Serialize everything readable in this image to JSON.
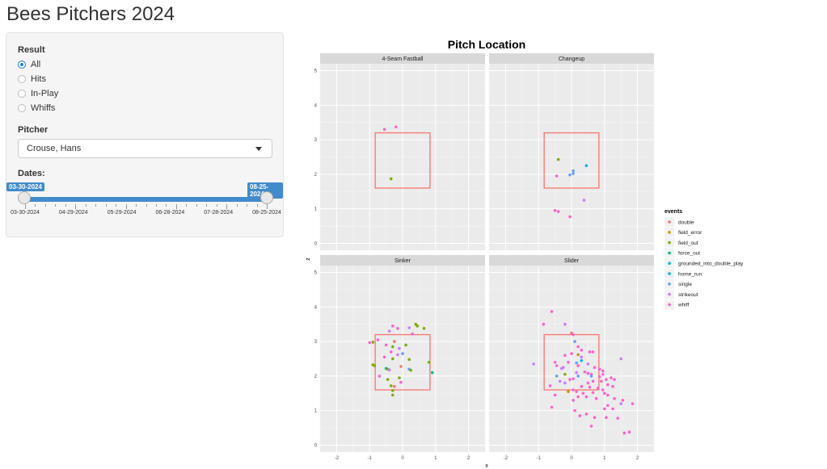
{
  "app": {
    "title": "Bees Pitchers 2024"
  },
  "sidebar": {
    "result_label": "Result",
    "result_options": [
      {
        "label": "All",
        "selected": true
      },
      {
        "label": "Hits",
        "selected": false
      },
      {
        "label": "In-Play",
        "selected": false
      },
      {
        "label": "Whiffs",
        "selected": false
      }
    ],
    "pitcher_label": "Pitcher",
    "pitcher_value": "Crouse, Hans",
    "dates_label": "Dates:",
    "date_start": "03-30-2024",
    "date_end": "08-25-2024",
    "date_ticks": [
      "03-30-2024",
      "04-29-2024",
      "05-29-2024",
      "06-28-2024",
      "07-28-2024",
      "08-25-2024"
    ]
  },
  "chart_data": {
    "type": "scatter",
    "title": "Pitch Location",
    "xlabel": "x",
    "ylabel": "z",
    "xlim": [
      -2.5,
      2.5
    ],
    "ylim": [
      -0.2,
      5.2
    ],
    "x_ticks": [
      -2,
      -1,
      0,
      1,
      2
    ],
    "y_ticks": [
      0,
      1,
      2,
      3,
      4,
      5
    ],
    "grid": true,
    "legend_position": "right",
    "legend_title": "events",
    "strike_zone": {
      "x": [
        -0.83,
        0.83
      ],
      "z": [
        1.6,
        3.2
      ]
    },
    "colors": {
      "double": "#F8766D",
      "field_error": "#C49A00",
      "field_out": "#7CAE00",
      "force_out": "#00C08B",
      "grounded_into_double_play": "#00BFC4",
      "home_run": "#00B4F0",
      "single": "#619CFF",
      "strikeout": "#C77CFF",
      "whiff": "#FF61CC"
    },
    "events": [
      "double",
      "field_error",
      "field_out",
      "force_out",
      "grounded_into_double_play",
      "home_run",
      "single",
      "strikeout",
      "whiff"
    ],
    "panels": [
      {
        "name": "4-Seam Fastball",
        "points": [
          {
            "x": -0.55,
            "z": 3.3,
            "event": "whiff"
          },
          {
            "x": -0.2,
            "z": 3.37,
            "event": "whiff"
          },
          {
            "x": -0.35,
            "z": 1.87,
            "event": "field_out"
          }
        ]
      },
      {
        "name": "Changeup",
        "points": [
          {
            "x": -0.4,
            "z": 2.43,
            "event": "field_out"
          },
          {
            "x": 0.45,
            "z": 2.25,
            "event": "home_run"
          },
          {
            "x": 0.05,
            "z": 2.1,
            "event": "single"
          },
          {
            "x": 0.05,
            "z": 2.02,
            "event": "single"
          },
          {
            "x": -0.05,
            "z": 1.98,
            "event": "single"
          },
          {
            "x": -0.45,
            "z": 1.95,
            "event": "whiff"
          },
          {
            "x": 0.38,
            "z": 1.25,
            "event": "strikeout"
          },
          {
            "x": -0.5,
            "z": 0.95,
            "event": "whiff"
          },
          {
            "x": -0.4,
            "z": 0.92,
            "event": "whiff"
          },
          {
            "x": -0.05,
            "z": 0.77,
            "event": "whiff"
          }
        ]
      },
      {
        "name": "Sinker",
        "points": [
          {
            "x": 0.4,
            "z": 3.5,
            "event": "field_out"
          },
          {
            "x": 0.45,
            "z": 3.45,
            "event": "field_out"
          },
          {
            "x": -0.3,
            "z": 3.45,
            "event": "whiff"
          },
          {
            "x": -0.15,
            "z": 3.38,
            "event": "whiff"
          },
          {
            "x": 0.2,
            "z": 3.4,
            "event": "strikeout"
          },
          {
            "x": 0.65,
            "z": 3.38,
            "event": "field_out"
          },
          {
            "x": -0.4,
            "z": 3.3,
            "event": "strikeout"
          },
          {
            "x": 0.3,
            "z": 3.22,
            "event": "whiff"
          },
          {
            "x": -0.75,
            "z": 3.05,
            "event": "whiff"
          },
          {
            "x": -1.0,
            "z": 2.97,
            "event": "whiff"
          },
          {
            "x": -0.9,
            "z": 2.98,
            "event": "field_out"
          },
          {
            "x": -0.25,
            "z": 3.0,
            "event": "double"
          },
          {
            "x": -0.5,
            "z": 2.9,
            "event": "whiff"
          },
          {
            "x": 0.1,
            "z": 2.9,
            "event": "field_out"
          },
          {
            "x": -0.3,
            "z": 2.85,
            "event": "field_out"
          },
          {
            "x": -0.1,
            "z": 2.8,
            "event": "strikeout"
          },
          {
            "x": -0.35,
            "z": 2.7,
            "event": "whiff"
          },
          {
            "x": 0.0,
            "z": 2.65,
            "event": "single"
          },
          {
            "x": -0.15,
            "z": 2.62,
            "event": "strikeout"
          },
          {
            "x": -0.55,
            "z": 2.55,
            "event": "whiff"
          },
          {
            "x": -0.3,
            "z": 2.5,
            "event": "field_out"
          },
          {
            "x": 0.2,
            "z": 2.48,
            "event": "field_out"
          },
          {
            "x": 0.8,
            "z": 2.4,
            "event": "field_out"
          },
          {
            "x": -0.9,
            "z": 2.33,
            "event": "field_out"
          },
          {
            "x": -0.85,
            "z": 2.3,
            "event": "field_out"
          },
          {
            "x": -0.05,
            "z": 2.28,
            "event": "double"
          },
          {
            "x": -0.5,
            "z": 2.22,
            "event": "force_out"
          },
          {
            "x": -0.45,
            "z": 2.2,
            "event": "field_out"
          },
          {
            "x": -0.4,
            "z": 2.18,
            "event": "strikeout"
          },
          {
            "x": 0.2,
            "z": 2.2,
            "event": "single"
          },
          {
            "x": 0.25,
            "z": 2.17,
            "event": "field_out"
          },
          {
            "x": 0.9,
            "z": 2.1,
            "event": "force_out"
          },
          {
            "x": -0.7,
            "z": 2.0,
            "event": "whiff"
          },
          {
            "x": -0.1,
            "z": 1.95,
            "event": "field_out"
          },
          {
            "x": -0.45,
            "z": 1.9,
            "event": "field_out"
          },
          {
            "x": -0.05,
            "z": 1.82,
            "event": "whiff"
          },
          {
            "x": -0.35,
            "z": 1.72,
            "event": "field_out"
          },
          {
            "x": -0.25,
            "z": 1.7,
            "event": "double"
          },
          {
            "x": -0.3,
            "z": 1.58,
            "event": "field_out"
          },
          {
            "x": -0.3,
            "z": 1.45,
            "event": "field_out"
          }
        ]
      },
      {
        "name": "Slider",
        "points": [
          {
            "x": -0.6,
            "z": 3.87,
            "event": "whiff"
          },
          {
            "x": -0.85,
            "z": 3.5,
            "event": "whiff"
          },
          {
            "x": -0.2,
            "z": 3.5,
            "event": "strikeout"
          },
          {
            "x": 0.0,
            "z": 3.25,
            "event": "double"
          },
          {
            "x": 0.05,
            "z": 3.2,
            "event": "whiff"
          },
          {
            "x": 0.1,
            "z": 3.0,
            "event": "single"
          },
          {
            "x": 0.2,
            "z": 2.85,
            "event": "whiff"
          },
          {
            "x": 0.3,
            "z": 2.75,
            "event": "whiff"
          },
          {
            "x": 0.55,
            "z": 2.7,
            "event": "whiff"
          },
          {
            "x": 0.65,
            "z": 2.7,
            "event": "whiff"
          },
          {
            "x": 0.0,
            "z": 2.65,
            "event": "whiff"
          },
          {
            "x": 0.2,
            "z": 2.62,
            "event": "field_error"
          },
          {
            "x": -0.2,
            "z": 2.6,
            "event": "whiff"
          },
          {
            "x": 0.3,
            "z": 2.55,
            "event": "strikeout"
          },
          {
            "x": 1.5,
            "z": 2.5,
            "event": "strikeout"
          },
          {
            "x": -0.5,
            "z": 2.4,
            "event": "whiff"
          },
          {
            "x": -0.1,
            "z": 2.4,
            "event": "whiff"
          },
          {
            "x": 0.15,
            "z": 2.38,
            "event": "single"
          },
          {
            "x": 0.3,
            "z": 2.45,
            "event": "home_run"
          },
          {
            "x": 0.5,
            "z": 2.35,
            "event": "strikeout"
          },
          {
            "x": -1.15,
            "z": 2.35,
            "event": "strikeout"
          },
          {
            "x": -0.45,
            "z": 2.3,
            "event": "whiff"
          },
          {
            "x": 0.2,
            "z": 2.3,
            "event": "whiff"
          },
          {
            "x": 0.7,
            "z": 2.25,
            "event": "whiff"
          },
          {
            "x": -0.25,
            "z": 2.25,
            "event": "strikeout"
          },
          {
            "x": -0.3,
            "z": 2.22,
            "event": "strikeout"
          },
          {
            "x": 0.85,
            "z": 2.2,
            "event": "whiff"
          },
          {
            "x": 0.95,
            "z": 2.15,
            "event": "whiff"
          },
          {
            "x": 0.4,
            "z": 2.12,
            "event": "whiff"
          },
          {
            "x": 0.15,
            "z": 2.1,
            "event": "strikeout"
          },
          {
            "x": 0.5,
            "z": 2.08,
            "event": "whiff"
          },
          {
            "x": 0.6,
            "z": 2.05,
            "event": "whiff"
          },
          {
            "x": 0.95,
            "z": 2.05,
            "event": "whiff"
          },
          {
            "x": -0.2,
            "z": 2.05,
            "event": "field_out"
          },
          {
            "x": 0.6,
            "z": 2.0,
            "event": "single"
          },
          {
            "x": -0.45,
            "z": 2.0,
            "event": "single"
          },
          {
            "x": 0.2,
            "z": 2.0,
            "event": "single"
          },
          {
            "x": 0.85,
            "z": 1.98,
            "event": "whiff"
          },
          {
            "x": 1.2,
            "z": 1.95,
            "event": "whiff"
          },
          {
            "x": 1.3,
            "z": 1.9,
            "event": "whiff"
          },
          {
            "x": 1.05,
            "z": 1.9,
            "event": "whiff"
          },
          {
            "x": -0.05,
            "z": 1.9,
            "event": "whiff"
          },
          {
            "x": 0.05,
            "z": 1.92,
            "event": "whiff"
          },
          {
            "x": -0.35,
            "z": 1.85,
            "event": "strikeout"
          },
          {
            "x": 0.65,
            "z": 1.85,
            "event": "whiff"
          },
          {
            "x": 0.9,
            "z": 1.85,
            "event": "whiff"
          },
          {
            "x": -0.2,
            "z": 1.8,
            "event": "strikeout"
          },
          {
            "x": 0.5,
            "z": 1.8,
            "event": "whiff"
          },
          {
            "x": 1.1,
            "z": 1.75,
            "event": "whiff"
          },
          {
            "x": 1.25,
            "z": 1.7,
            "event": "whiff"
          },
          {
            "x": 0.3,
            "z": 1.7,
            "event": "whiff"
          },
          {
            "x": -0.65,
            "z": 1.72,
            "event": "whiff"
          },
          {
            "x": 0.55,
            "z": 1.68,
            "event": "whiff"
          },
          {
            "x": 0.8,
            "z": 1.65,
            "event": "whiff"
          },
          {
            "x": 0.95,
            "z": 1.6,
            "event": "whiff"
          },
          {
            "x": 0.05,
            "z": 1.6,
            "event": "whiff"
          },
          {
            "x": 0.15,
            "z": 1.55,
            "event": "whiff"
          },
          {
            "x": 0.65,
            "z": 1.52,
            "event": "whiff"
          },
          {
            "x": -0.1,
            "z": 1.55,
            "event": "field_error"
          },
          {
            "x": 0.35,
            "z": 1.5,
            "event": "whiff"
          },
          {
            "x": 1.0,
            "z": 1.5,
            "event": "whiff"
          },
          {
            "x": 1.1,
            "z": 1.45,
            "event": "whiff"
          },
          {
            "x": -0.5,
            "z": 1.45,
            "event": "whiff"
          },
          {
            "x": 0.2,
            "z": 1.4,
            "event": "whiff"
          },
          {
            "x": 0.45,
            "z": 1.4,
            "event": "whiff"
          },
          {
            "x": 1.3,
            "z": 1.35,
            "event": "whiff"
          },
          {
            "x": 0.75,
            "z": 1.35,
            "event": "whiff"
          },
          {
            "x": 0.05,
            "z": 1.3,
            "event": "whiff"
          },
          {
            "x": 1.55,
            "z": 1.3,
            "event": "whiff"
          },
          {
            "x": 1.5,
            "z": 1.2,
            "event": "strikeout"
          },
          {
            "x": 1.85,
            "z": 1.2,
            "event": "whiff"
          },
          {
            "x": 1.1,
            "z": 1.15,
            "event": "whiff"
          },
          {
            "x": -0.6,
            "z": 1.1,
            "event": "whiff"
          },
          {
            "x": 1.25,
            "z": 1.05,
            "event": "whiff"
          },
          {
            "x": 1.0,
            "z": 1.05,
            "event": "whiff"
          },
          {
            "x": 0.1,
            "z": 1.0,
            "event": "whiff"
          },
          {
            "x": 0.45,
            "z": 0.9,
            "event": "whiff"
          },
          {
            "x": 0.25,
            "z": 0.85,
            "event": "whiff"
          },
          {
            "x": 0.7,
            "z": 0.8,
            "event": "whiff"
          },
          {
            "x": 1.05,
            "z": 0.8,
            "event": "whiff"
          },
          {
            "x": 1.4,
            "z": 0.78,
            "event": "whiff"
          },
          {
            "x": 0.6,
            "z": 0.55,
            "event": "whiff"
          },
          {
            "x": 1.75,
            "z": 0.38,
            "event": "whiff"
          },
          {
            "x": 1.6,
            "z": 0.35,
            "event": "whiff"
          }
        ]
      }
    ]
  }
}
